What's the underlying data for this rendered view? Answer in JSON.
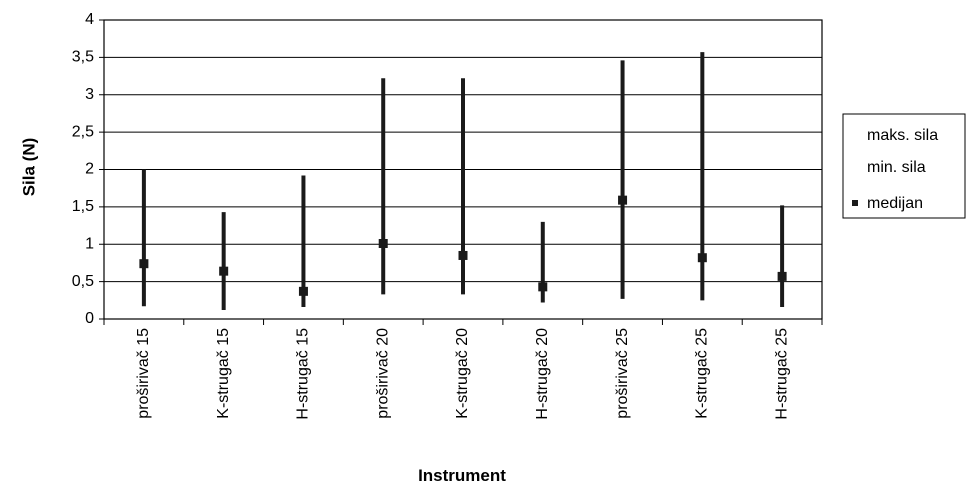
{
  "chart_data": {
    "type": "stock",
    "categories": [
      "proširivač 15",
      "K-strugač 15",
      "H-strugač 15",
      "proširivač 20",
      "K-strugač 20",
      "H-strugač 20",
      "proširivač 25",
      "K-strugač 25",
      "H-strugač 25"
    ],
    "series": [
      {
        "name": "maks. sila",
        "values": [
          2.0,
          1.43,
          1.92,
          3.22,
          3.22,
          1.3,
          3.46,
          3.57,
          1.52
        ]
      },
      {
        "name": "min. sila",
        "values": [
          0.17,
          0.12,
          0.16,
          0.33,
          0.33,
          0.22,
          0.27,
          0.25,
          0.16
        ]
      },
      {
        "name": "medijan",
        "values": [
          0.74,
          0.64,
          0.37,
          1.01,
          0.85,
          0.43,
          1.59,
          0.82,
          0.57
        ]
      }
    ],
    "xlabel": "Instrument",
    "ylabel": "Sila (N)",
    "ylim": [
      0,
      4
    ],
    "yticks": [
      "0",
      "0,5",
      "1",
      "1,5",
      "2",
      "2,5",
      "3",
      "3,5",
      "4"
    ],
    "grid": true,
    "legend": "right",
    "colors": {
      "range_line": "#1a1a1a",
      "median_marker": "#1a1a1a",
      "gridline": "#000000"
    }
  }
}
